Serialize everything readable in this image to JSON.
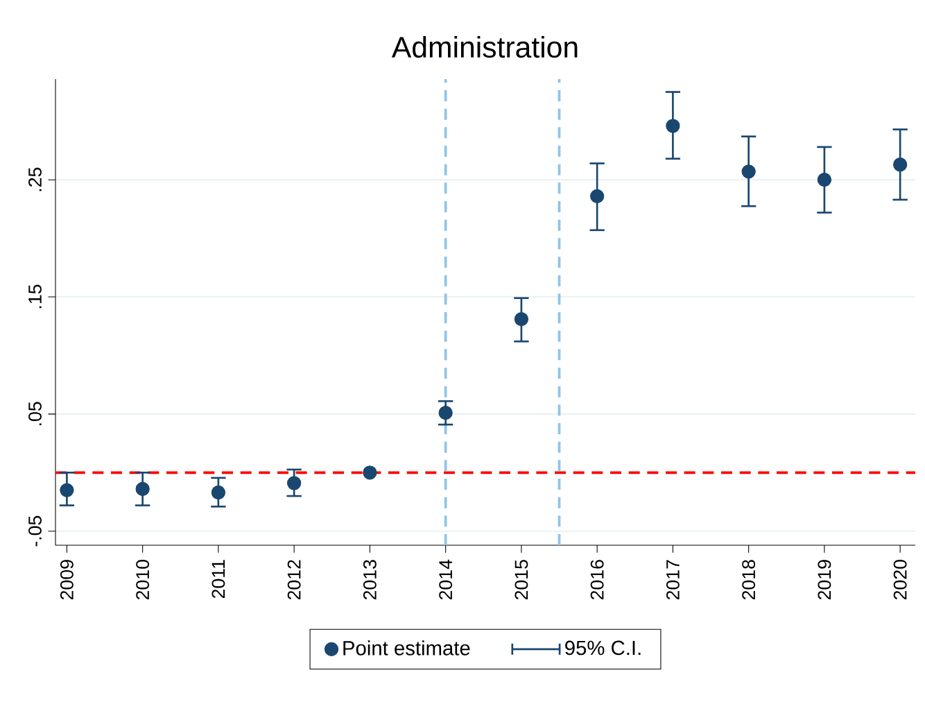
{
  "chart_data": {
    "type": "scatter",
    "title": "Administration",
    "x": [
      2009,
      2010,
      2011,
      2012,
      2013,
      2014,
      2015,
      2016,
      2017,
      2018,
      2019,
      2020
    ],
    "series": [
      {
        "name": "Point estimate",
        "color": "#1a476f",
        "values": [
          -0.015,
          -0.014,
          -0.017,
          -0.009,
          0,
          0.051,
          0.131,
          0.236,
          0.296,
          0.257,
          0.25,
          0.263
        ],
        "errors": [
          [
            -0.028,
            0.0
          ],
          [
            -0.028,
            0.0
          ],
          [
            -0.029,
            -0.0045
          ],
          [
            -0.02,
            0.0026
          ],
          null,
          [
            0.041,
            0.061
          ],
          [
            0.112,
            0.149
          ],
          [
            0.207,
            0.264
          ],
          [
            0.268,
            0.325
          ],
          [
            0.2275,
            0.287
          ],
          [
            0.222,
            0.278
          ],
          [
            0.233,
            0.293
          ]
        ]
      }
    ],
    "annotations": [
      "95% C.I."
    ],
    "xlim": [
      2008.85,
      2020.2
    ],
    "xticks": [
      2009,
      2010,
      2011,
      2012,
      2013,
      2014,
      2015,
      2016,
      2017,
      2018,
      2019,
      2020
    ],
    "ylim": [
      -0.062,
      0.336
    ],
    "yticks": [
      {
        "value": -0.05,
        "label": "-.05"
      },
      {
        "value": 0.05,
        "label": ".05"
      },
      {
        "value": 0.15,
        "label": ".15"
      },
      {
        "value": 0.25,
        "label": ".25"
      }
    ],
    "ref_lines": [
      {
        "axis": "y",
        "value": 0,
        "color": "#ff0000",
        "line_style": "dashed"
      },
      {
        "axis": "x",
        "value": 2014,
        "color": "#8ec4ea",
        "line_style": "dashed"
      },
      {
        "axis": "x",
        "value": 2015.5,
        "color": "#8ec4ea",
        "line_style": "dashed"
      }
    ],
    "grid": "y",
    "legend": "bottom",
    "marker": "circle"
  }
}
